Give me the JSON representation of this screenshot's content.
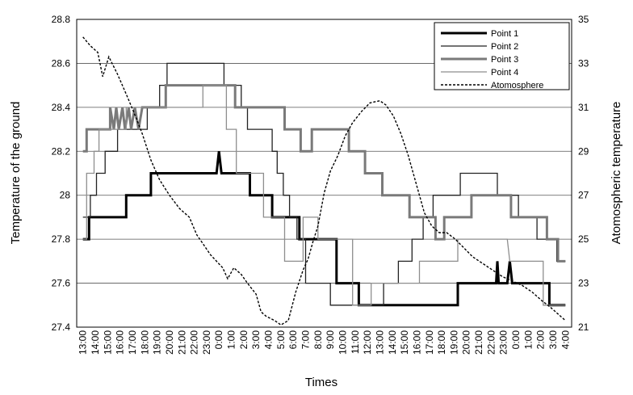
{
  "chart_data": {
    "type": "line",
    "title": "",
    "xlabel": "Times",
    "ylabel": "Temperature of the ground",
    "ylabel_right": "Atomospheric temperature",
    "ylim": [
      27.4,
      28.8
    ],
    "yticks": [
      "27.4",
      "27.6",
      "27.8",
      "28",
      "28.2",
      "28.4",
      "28.6",
      "28.8"
    ],
    "ylim_right": [
      21,
      35
    ],
    "yticks_right": [
      "21",
      "23",
      "25",
      "27",
      "29",
      "31",
      "33",
      "35"
    ],
    "grid": "horizontal",
    "legend_position": "top-right",
    "categories": [
      "13:00",
      "14:00",
      "15:00",
      "16:00",
      "17:00",
      "18:00",
      "19:00",
      "20:00",
      "21:00",
      "22:00",
      "23:00",
      "0:00",
      "1:00",
      "2:00",
      "3:00",
      "4:00",
      "5:00",
      "6:00",
      "7:00",
      "8:00",
      "9:00",
      "10:00",
      "11:00",
      "12:00",
      "13:00",
      "14:00",
      "15:00",
      "16:00",
      "17:00",
      "18:00",
      "19:00",
      "20:00",
      "21:00",
      "22:00",
      "23:00",
      "0:00",
      "1:00",
      "2:00",
      "3:00",
      "4:00"
    ],
    "series": [
      {
        "name": "Point 1",
        "axis": "left",
        "style": "thick",
        "points": [
          [
            0,
            27.8
          ],
          [
            0.5,
            27.8
          ],
          [
            0.5,
            27.9
          ],
          [
            3.5,
            27.9
          ],
          [
            3.5,
            28.0
          ],
          [
            5.5,
            28.0
          ],
          [
            5.5,
            28.1
          ],
          [
            10.8,
            28.1
          ],
          [
            11,
            28.2
          ],
          [
            11.2,
            28.1
          ],
          [
            13.5,
            28.1
          ],
          [
            13.5,
            28.0
          ],
          [
            15.3,
            28.0
          ],
          [
            15.3,
            27.9
          ],
          [
            17.5,
            27.9
          ],
          [
            17.5,
            27.8
          ],
          [
            20.5,
            27.8
          ],
          [
            20.5,
            27.6
          ],
          [
            22.3,
            27.6
          ],
          [
            22.3,
            27.5
          ],
          [
            30.3,
            27.5
          ],
          [
            30.3,
            27.6
          ],
          [
            33.4,
            27.6
          ],
          [
            33.5,
            27.7
          ],
          [
            33.6,
            27.6
          ],
          [
            34.3,
            27.6
          ],
          [
            34.5,
            27.7
          ],
          [
            34.7,
            27.6
          ],
          [
            37.7,
            27.6
          ],
          [
            37.7,
            27.5
          ],
          [
            39,
            27.5
          ]
        ]
      },
      {
        "name": "Point 2",
        "axis": "left",
        "style": "thin",
        "points": [
          [
            0,
            27.9
          ],
          [
            0.6,
            27.9
          ],
          [
            0.6,
            28.0
          ],
          [
            1.1,
            28.0
          ],
          [
            1.1,
            28.1
          ],
          [
            1.8,
            28.1
          ],
          [
            1.8,
            28.2
          ],
          [
            2.8,
            28.2
          ],
          [
            2.8,
            28.3
          ],
          [
            5.2,
            28.3
          ],
          [
            5.2,
            28.4
          ],
          [
            6.2,
            28.4
          ],
          [
            6.2,
            28.5
          ],
          [
            6.8,
            28.5
          ],
          [
            6.8,
            28.6
          ],
          [
            11.4,
            28.6
          ],
          [
            11.4,
            28.5
          ],
          [
            12.8,
            28.5
          ],
          [
            12.8,
            28.4
          ],
          [
            13.3,
            28.4
          ],
          [
            13.3,
            28.3
          ],
          [
            15.3,
            28.3
          ],
          [
            15.3,
            28.2
          ],
          [
            15.7,
            28.2
          ],
          [
            15.7,
            28.1
          ],
          [
            16.2,
            28.1
          ],
          [
            16.2,
            28.0
          ],
          [
            16.7,
            28.0
          ],
          [
            16.7,
            27.9
          ],
          [
            17.3,
            27.9
          ],
          [
            17.3,
            27.8
          ],
          [
            18,
            27.8
          ],
          [
            18,
            27.6
          ],
          [
            20,
            27.6
          ],
          [
            20,
            27.5
          ],
          [
            24.3,
            27.5
          ],
          [
            24.3,
            27.6
          ],
          [
            25.5,
            27.6
          ],
          [
            25.5,
            27.7
          ],
          [
            26.6,
            27.7
          ],
          [
            26.6,
            27.8
          ],
          [
            27.5,
            27.8
          ],
          [
            27.5,
            27.9
          ],
          [
            28.3,
            27.9
          ],
          [
            28.3,
            28.0
          ],
          [
            30.5,
            28.0
          ],
          [
            30.5,
            28.1
          ],
          [
            33.5,
            28.1
          ],
          [
            33.5,
            28.0
          ],
          [
            35.2,
            28.0
          ],
          [
            35.2,
            27.9
          ],
          [
            36.7,
            27.9
          ],
          [
            36.7,
            27.8
          ],
          [
            38.3,
            27.8
          ],
          [
            38.3,
            27.7
          ],
          [
            39,
            27.7
          ]
        ]
      },
      {
        "name": "Point 3",
        "axis": "left",
        "style": "gray-thick",
        "points": [
          [
            0,
            28.2
          ],
          [
            0.3,
            28.2
          ],
          [
            0.3,
            28.3
          ],
          [
            2.2,
            28.3
          ],
          [
            2.2,
            28.4
          ],
          [
            2.5,
            28.3
          ],
          [
            2.7,
            28.4
          ],
          [
            2.9,
            28.3
          ],
          [
            3.2,
            28.4
          ],
          [
            3.4,
            28.3
          ],
          [
            3.7,
            28.4
          ],
          [
            3.9,
            28.3
          ],
          [
            4.2,
            28.4
          ],
          [
            4.5,
            28.3
          ],
          [
            4.8,
            28.4
          ],
          [
            6.7,
            28.4
          ],
          [
            6.7,
            28.5
          ],
          [
            12.3,
            28.5
          ],
          [
            12.3,
            28.4
          ],
          [
            16.3,
            28.4
          ],
          [
            16.3,
            28.3
          ],
          [
            17.6,
            28.3
          ],
          [
            17.6,
            28.2
          ],
          [
            18.5,
            28.2
          ],
          [
            18.5,
            28.3
          ],
          [
            21.5,
            28.3
          ],
          [
            21.5,
            28.2
          ],
          [
            22.8,
            28.2
          ],
          [
            22.8,
            28.1
          ],
          [
            24.2,
            28.1
          ],
          [
            24.2,
            28.0
          ],
          [
            26.4,
            28.0
          ],
          [
            26.4,
            27.9
          ],
          [
            28.5,
            27.9
          ],
          [
            28.5,
            27.8
          ],
          [
            29.2,
            27.8
          ],
          [
            29.2,
            27.9
          ],
          [
            31.4,
            27.9
          ],
          [
            31.4,
            28.0
          ],
          [
            34.6,
            28.0
          ],
          [
            34.6,
            27.9
          ],
          [
            37.5,
            27.9
          ],
          [
            37.5,
            27.8
          ],
          [
            38.4,
            27.8
          ],
          [
            38.4,
            27.7
          ],
          [
            39,
            27.7
          ]
        ]
      },
      {
        "name": "Point 4",
        "axis": "left",
        "style": "gray-thin",
        "points": [
          [
            0,
            27.8
          ],
          [
            0.3,
            27.8
          ],
          [
            0.3,
            28.1
          ],
          [
            0.9,
            28.1
          ],
          [
            0.9,
            28.2
          ],
          [
            1.3,
            28.2
          ],
          [
            1.3,
            28.3
          ],
          [
            3.5,
            28.3
          ],
          [
            3.5,
            28.4
          ],
          [
            9.7,
            28.4
          ],
          [
            9.7,
            28.5
          ],
          [
            11.6,
            28.5
          ],
          [
            11.6,
            28.3
          ],
          [
            12.4,
            28.3
          ],
          [
            12.4,
            28.1
          ],
          [
            14.6,
            28.1
          ],
          [
            14.6,
            27.9
          ],
          [
            16.3,
            27.9
          ],
          [
            16.3,
            27.7
          ],
          [
            17.8,
            27.7
          ],
          [
            17.8,
            27.9
          ],
          [
            19,
            27.9
          ],
          [
            19,
            27.8
          ],
          [
            21.8,
            27.8
          ],
          [
            21.8,
            27.5
          ],
          [
            23.3,
            27.5
          ],
          [
            23.3,
            27.6
          ],
          [
            27.2,
            27.6
          ],
          [
            27.2,
            27.7
          ],
          [
            30.3,
            27.7
          ],
          [
            30.3,
            27.8
          ],
          [
            34.3,
            27.8
          ],
          [
            34.5,
            27.7
          ],
          [
            37.2,
            27.7
          ],
          [
            37.2,
            27.5
          ],
          [
            39,
            27.5
          ]
        ]
      },
      {
        "name": "Atomosphere",
        "axis": "right",
        "style": "dashed",
        "points": [
          [
            0,
            34.2
          ],
          [
            0.6,
            33.8
          ],
          [
            1.2,
            33.5
          ],
          [
            1.6,
            32.4
          ],
          [
            2.1,
            33.3
          ],
          [
            2.8,
            32.5
          ],
          [
            3.5,
            31.6
          ],
          [
            4.1,
            30.8
          ],
          [
            4.8,
            29.8
          ],
          [
            5.5,
            28.6
          ],
          [
            6.2,
            27.7
          ],
          [
            7.0,
            27.0
          ],
          [
            7.8,
            26.4
          ],
          [
            8.6,
            26.0
          ],
          [
            9.2,
            25.2
          ],
          [
            9.7,
            24.8
          ],
          [
            10.3,
            24.3
          ],
          [
            10.8,
            24.0
          ],
          [
            11.3,
            23.7
          ],
          [
            11.7,
            23.2
          ],
          [
            12.2,
            23.7
          ],
          [
            12.8,
            23.4
          ],
          [
            13.3,
            23.0
          ],
          [
            14.0,
            22.5
          ],
          [
            14.4,
            21.7
          ],
          [
            14.8,
            21.5
          ],
          [
            15.5,
            21.3
          ],
          [
            16.0,
            21.1
          ],
          [
            16.6,
            21.3
          ],
          [
            17.2,
            22.6
          ],
          [
            17.8,
            23.6
          ],
          [
            18.2,
            24.1
          ],
          [
            18.6,
            24.9
          ],
          [
            19.0,
            25.6
          ],
          [
            19.5,
            27.1
          ],
          [
            20.0,
            28.1
          ],
          [
            20.6,
            28.8
          ],
          [
            21.2,
            29.7
          ],
          [
            21.8,
            30.3
          ],
          [
            22.5,
            30.8
          ],
          [
            23.2,
            31.2
          ],
          [
            24.0,
            31.3
          ],
          [
            24.5,
            31.1
          ],
          [
            25.1,
            30.6
          ],
          [
            25.7,
            29.8
          ],
          [
            26.3,
            28.8
          ],
          [
            27.0,
            27.4
          ],
          [
            27.6,
            26.2
          ],
          [
            28.2,
            25.6
          ],
          [
            28.8,
            25.3
          ],
          [
            29.4,
            25.3
          ],
          [
            30.1,
            25.0
          ],
          [
            30.8,
            24.6
          ],
          [
            31.5,
            24.2
          ],
          [
            32.3,
            23.9
          ],
          [
            33.1,
            23.6
          ],
          [
            33.9,
            23.3
          ],
          [
            34.7,
            23.1
          ],
          [
            35.5,
            22.9
          ],
          [
            36.3,
            22.6
          ],
          [
            37.1,
            22.2
          ],
          [
            37.8,
            21.9
          ],
          [
            38.4,
            21.6
          ],
          [
            39.0,
            21.3
          ]
        ]
      }
    ]
  }
}
